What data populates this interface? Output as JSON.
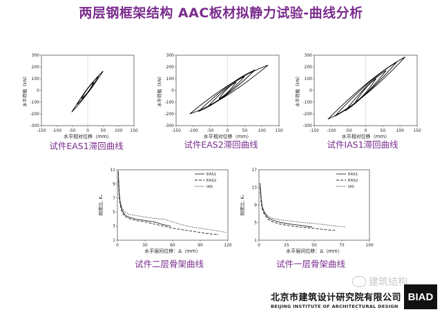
{
  "title": "两层钢框架结构 AAC板材拟静力试验-曲线分析",
  "colors": {
    "title": "#7a2c8c",
    "curve": "#000000"
  },
  "chart_data": [
    {
      "id": "hyst1",
      "type": "line",
      "xlabel": "水平相对位移（mm）",
      "ylabel": "水平荷载（kN）",
      "xlim": [
        -150,
        150
      ],
      "ylim": [
        -300,
        300
      ],
      "xticks": [
        -150,
        -100,
        -50,
        0,
        50,
        100,
        150
      ],
      "yticks": [
        -300,
        -200,
        -100,
        0,
        100,
        200,
        300
      ],
      "caption": "试件EAS1滞回曲线",
      "loops": [
        {
          "amp": 20,
          "neg": 20,
          "fp": 70,
          "fn": -70,
          "w": 14
        },
        {
          "amp": 35,
          "neg": 35,
          "fp": 120,
          "fn": -120,
          "w": 20
        },
        {
          "amp": 50,
          "neg": 52,
          "fp": 165,
          "fn": -185,
          "w": 22
        }
      ]
    },
    {
      "id": "hyst2",
      "type": "line",
      "xlabel": "水平相对位移（mm）",
      "ylabel": "水平荷载（kN）",
      "xlim": [
        -150,
        150
      ],
      "ylim": [
        -300,
        300
      ],
      "xticks": [
        -150,
        -100,
        -50,
        0,
        50,
        100,
        150
      ],
      "yticks": [
        -300,
        -200,
        -100,
        0,
        100,
        200,
        300
      ],
      "caption": "试件EAS2滞回曲线",
      "loops": [
        {
          "amp": 25,
          "neg": 25,
          "fp": 70,
          "fn": -70,
          "w": 20
        },
        {
          "amp": 50,
          "neg": 55,
          "fp": 120,
          "fn": -130,
          "w": 35
        },
        {
          "amp": 80,
          "neg": 85,
          "fp": 175,
          "fn": -180,
          "w": 55
        },
        {
          "amp": 118,
          "neg": 110,
          "fp": 215,
          "fn": -200,
          "w": 70
        }
      ]
    },
    {
      "id": "hyst3",
      "type": "line",
      "xlabel": "水平相对位移（mm）",
      "ylabel": "水平荷载（kN）",
      "xlim": [
        -150,
        150
      ],
      "ylim": [
        -300,
        300
      ],
      "xticks": [
        -150,
        -100,
        -50,
        0,
        50,
        100,
        150
      ],
      "yticks": [
        -300,
        -200,
        -100,
        0,
        100,
        200,
        300
      ],
      "caption": "试件IAS1滞回曲线",
      "loops": [
        {
          "amp": 30,
          "neg": 30,
          "fp": 100,
          "fn": -100,
          "w": 22
        },
        {
          "amp": 60,
          "neg": 60,
          "fp": 170,
          "fn": -175,
          "w": 40
        },
        {
          "amp": 90,
          "neg": 90,
          "fp": 240,
          "fn": -220,
          "w": 60
        },
        {
          "amp": 115,
          "neg": 110,
          "fp": 285,
          "fn": -245,
          "w": 75
        }
      ]
    },
    {
      "id": "skel2",
      "type": "line",
      "xlabel": "水平层间位移：Δ（mm）",
      "ylabel": "刚度比, Kₙ",
      "xlim": [
        0,
        120
      ],
      "ylim": [
        1,
        11
      ],
      "xticks": [
        0,
        30,
        60,
        90,
        120
      ],
      "yticks": [
        1,
        3,
        5,
        7,
        9,
        11
      ],
      "caption": "试件二层骨架曲线",
      "legend": "top-right",
      "series": [
        {
          "name": "EAS1",
          "style": "solid",
          "points": [
            [
              1,
              10.8
            ],
            [
              2,
              7.5
            ],
            [
              3,
              6.3
            ],
            [
              5,
              5.3
            ],
            [
              8,
              4.6
            ],
            [
              12,
              4.3
            ],
            [
              20,
              4.0
            ],
            [
              30,
              3.8
            ],
            [
              40,
              3.6
            ],
            [
              50,
              3.2
            ],
            [
              58,
              3.0
            ]
          ]
        },
        {
          "name": "EAS2",
          "style": "dashed",
          "points": [
            [
              1,
              9.5
            ],
            [
              2,
              7.0
            ],
            [
              3,
              6.0
            ],
            [
              5,
              5.0
            ],
            [
              8,
              4.4
            ],
            [
              12,
              4.1
            ],
            [
              20,
              3.8
            ],
            [
              30,
              3.6
            ],
            [
              40,
              3.3
            ],
            [
              50,
              3.0
            ],
            [
              60,
              2.7
            ],
            [
              70,
              2.5
            ],
            [
              80,
              2.3
            ],
            [
              90,
              2.1
            ],
            [
              100,
              1.9
            ],
            [
              110,
              1.8
            ]
          ]
        },
        {
          "name": "IAS",
          "style": "dotted",
          "points": [
            [
              1,
              9.8
            ],
            [
              2,
              7.8
            ],
            [
              3,
              6.6
            ],
            [
              5,
              5.6
            ],
            [
              8,
              5.0
            ],
            [
              12,
              4.7
            ],
            [
              20,
              4.5
            ],
            [
              30,
              4.3
            ],
            [
              40,
              4.1
            ],
            [
              50,
              4.0
            ],
            [
              60,
              3.6
            ],
            [
              70,
              3.2
            ],
            [
              80,
              2.9
            ],
            [
              90,
              2.7
            ],
            [
              100,
              2.5
            ],
            [
              110,
              2.3
            ],
            [
              118,
              2.1
            ]
          ]
        }
      ]
    },
    {
      "id": "skel1",
      "type": "line",
      "xlabel": "水平层间位移：Δ（mm）",
      "ylabel": "刚度比, Kₙ",
      "xlim": [
        0,
        100
      ],
      "ylim": [
        1,
        17
      ],
      "xticks": [
        0,
        25,
        50,
        75,
        100
      ],
      "yticks": [
        1,
        5,
        9,
        13,
        17
      ],
      "caption": "试件一层骨架曲线",
      "legend": "top-right",
      "series": [
        {
          "name": "EAS1",
          "style": "solid",
          "points": [
            [
              1,
              14.0
            ],
            [
              2,
              10.5
            ],
            [
              3,
              8.5
            ],
            [
              5,
              7.2
            ],
            [
              8,
              6.2
            ],
            [
              12,
              5.6
            ],
            [
              20,
              5.0
            ],
            [
              30,
              4.6
            ],
            [
              40,
              4.3
            ],
            [
              48,
              4.0
            ]
          ]
        },
        {
          "name": "EAS2",
          "style": "dashed",
          "points": [
            [
              1,
              13.0
            ],
            [
              2,
              9.5
            ],
            [
              3,
              8.0
            ],
            [
              5,
              6.8
            ],
            [
              8,
              5.8
            ],
            [
              12,
              5.2
            ],
            [
              20,
              4.6
            ],
            [
              30,
              4.2
            ],
            [
              40,
              3.9
            ],
            [
              50,
              3.7
            ],
            [
              60,
              3.4
            ],
            [
              70,
              3.2
            ]
          ]
        },
        {
          "name": "IAS",
          "style": "dotted",
          "points": [
            [
              1,
              13.5
            ],
            [
              2,
              10.0
            ],
            [
              3,
              8.6
            ],
            [
              5,
              7.4
            ],
            [
              8,
              6.5
            ],
            [
              12,
              6.0
            ],
            [
              20,
              5.6
            ],
            [
              30,
              5.3
            ],
            [
              40,
              5.0
            ],
            [
              50,
              4.8
            ],
            [
              60,
              4.5
            ],
            [
              70,
              4.2
            ],
            [
              78,
              4.0
            ]
          ]
        }
      ]
    }
  ],
  "footer": {
    "name_cn": "北京市建筑设计研究院有限公司",
    "name_en": "BEIJING INSTITUTE OF ARCHITECTURAL DESIGN",
    "logo": "BIAD",
    "watermark": "建筑结构"
  }
}
